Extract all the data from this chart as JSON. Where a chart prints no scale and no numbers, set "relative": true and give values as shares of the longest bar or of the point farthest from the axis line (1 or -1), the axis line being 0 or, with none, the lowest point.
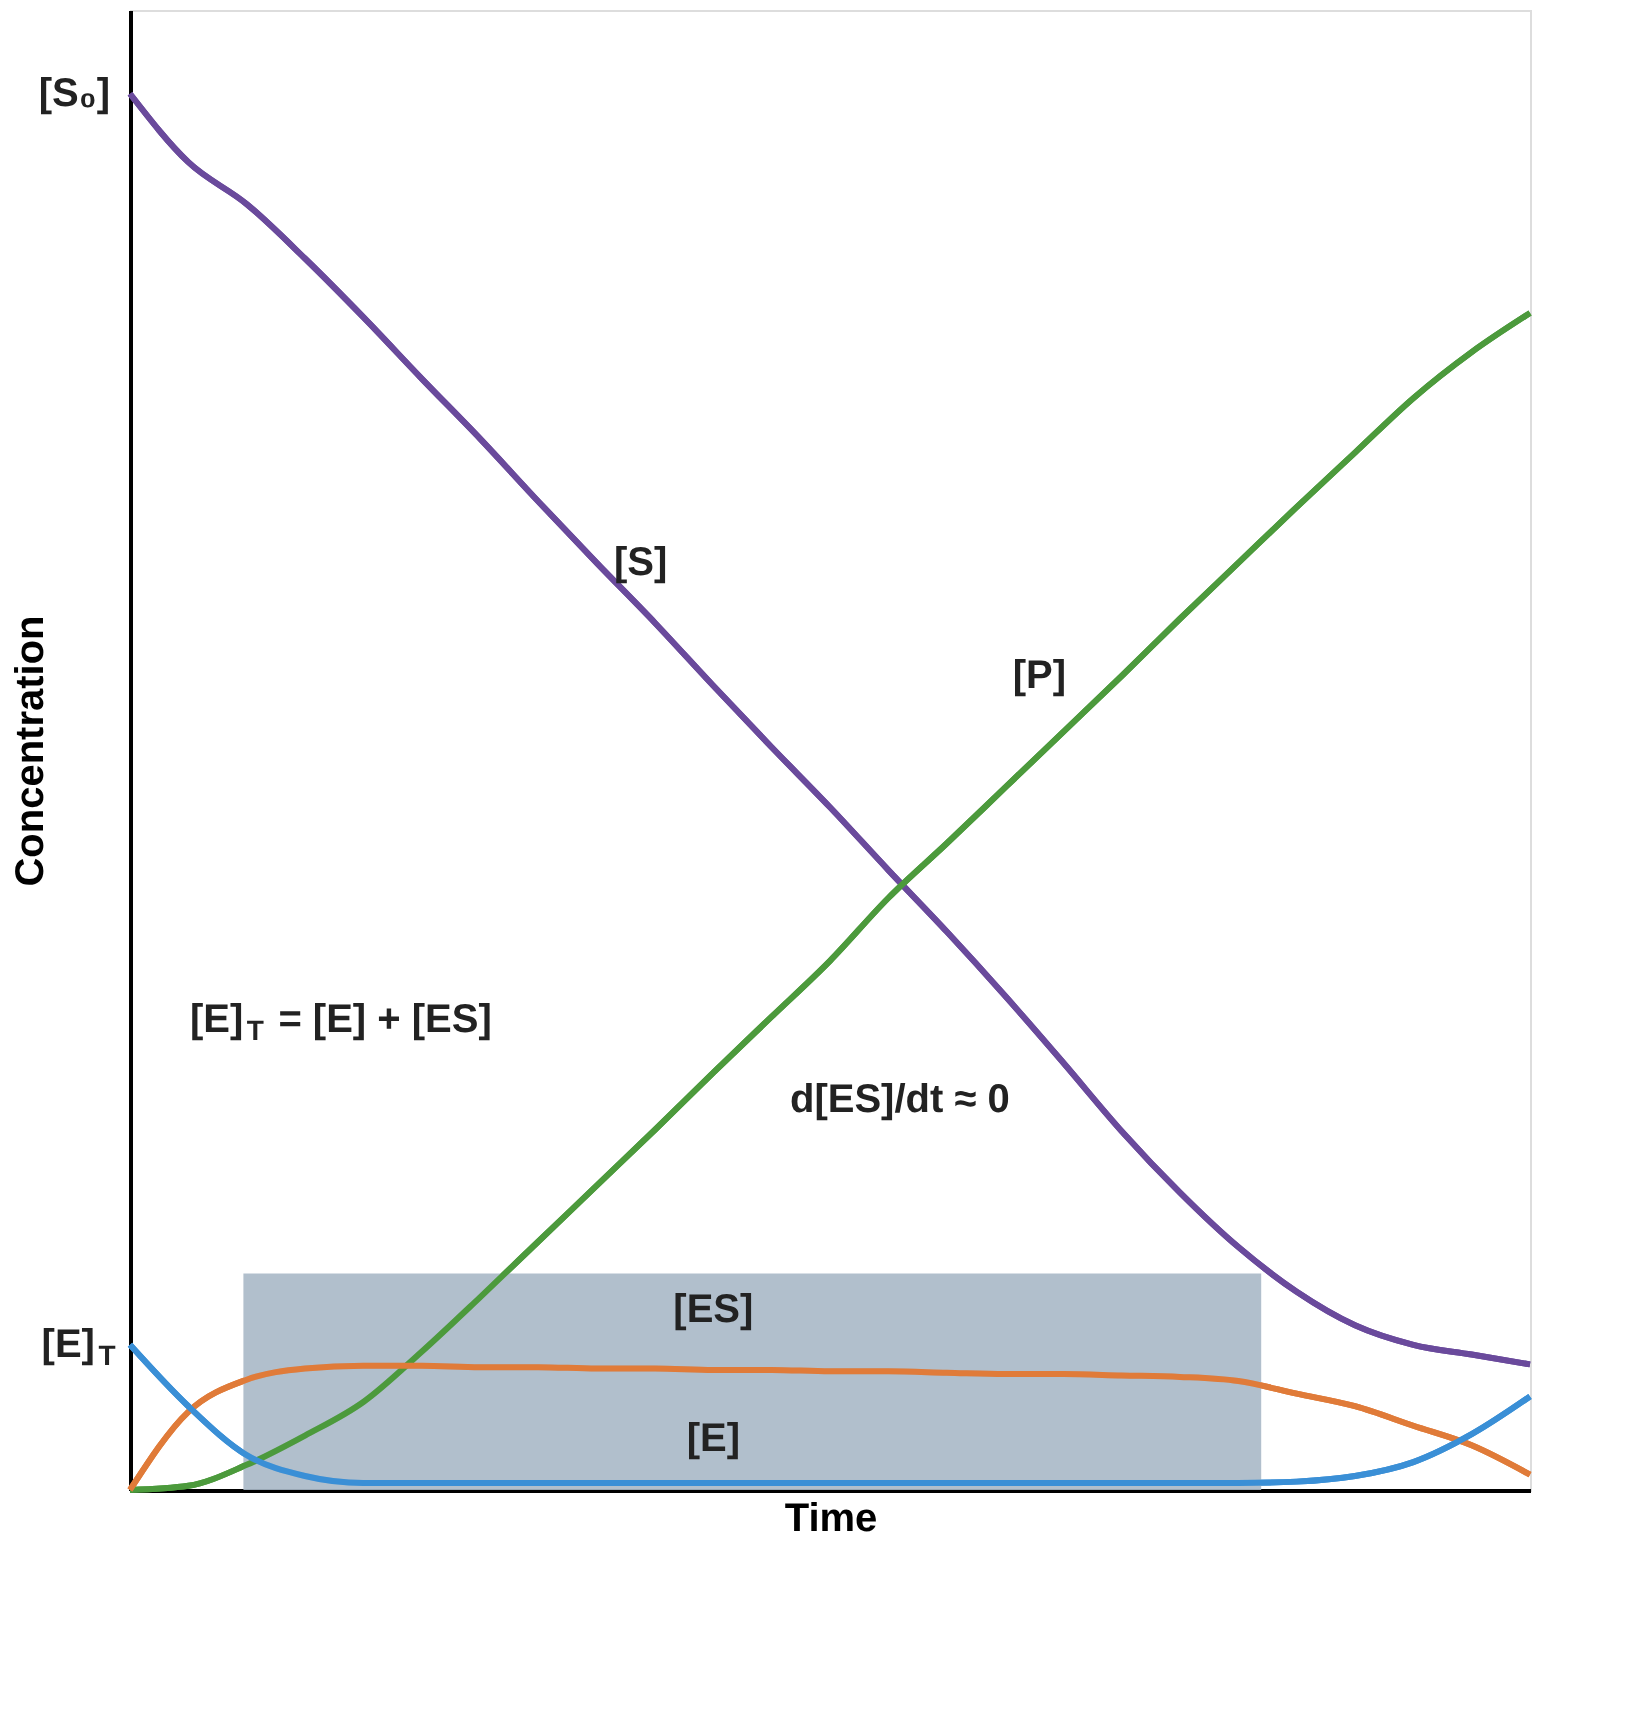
{
  "chart_data": {
    "type": "line",
    "relative": true,
    "xlabel": "Time",
    "ylabel": "Concentration",
    "categories": [
      null,
      null,
      null,
      null,
      null,
      null,
      null,
      null,
      null,
      null,
      null,
      null,
      null,
      null,
      null,
      null,
      null,
      null,
      null,
      null,
      null,
      null,
      null,
      null,
      null
    ],
    "series": [
      {
        "name": "[S]",
        "color": "#6a4a9c",
        "values": [
          1.0,
          0.951,
          0.921,
          0.882,
          0.84,
          0.796,
          0.753,
          0.708,
          0.664,
          0.621,
          0.576,
          0.532,
          0.489,
          0.444,
          0.4,
          0.354,
          0.306,
          0.257,
          0.213,
          0.174,
          0.142,
          0.118,
          0.104,
          0.097,
          0.09
        ]
      },
      {
        "name": "[P]",
        "color": "#4c9a3c",
        "values": [
          0.0,
          0.003,
          0.018,
          0.039,
          0.063,
          0.099,
          0.138,
          0.178,
          0.218,
          0.258,
          0.299,
          0.339,
          0.379,
          0.424,
          0.463,
          0.503,
          0.543,
          0.583,
          0.624,
          0.664,
          0.704,
          0.743,
          0.782,
          0.815,
          0.843
        ]
      },
      {
        "name": "[ES]",
        "color": "#e07b39",
        "values": [
          0.0,
          0.056,
          0.079,
          0.087,
          0.089,
          0.089,
          0.088,
          0.088,
          0.087,
          0.087,
          0.086,
          0.086,
          0.085,
          0.085,
          0.084,
          0.083,
          0.083,
          0.082,
          0.081,
          0.078,
          0.069,
          0.06,
          0.046,
          0.032,
          0.011
        ]
      },
      {
        "name": "[E]",
        "color": "#3a8fd6",
        "values": [
          0.104,
          0.06,
          0.025,
          0.01,
          0.005,
          0.005,
          0.005,
          0.005,
          0.005,
          0.005,
          0.005,
          0.005,
          0.005,
          0.005,
          0.005,
          0.005,
          0.005,
          0.005,
          0.005,
          0.005,
          0.006,
          0.01,
          0.02,
          0.04,
          0.067
        ]
      }
    ],
    "annotations": [
      "[S₀]",
      "[E]$_{T}$",
      "[E]$_{T}$ = [E] + [ES]",
      "d[ES]/dt ≈ 0"
    ],
    "bands": [
      {
        "axis": "y",
        "from": 0,
        "to": 0.155,
        "color": "#a9b8c6"
      }
    ],
    "tick_labels": false
  }
}
